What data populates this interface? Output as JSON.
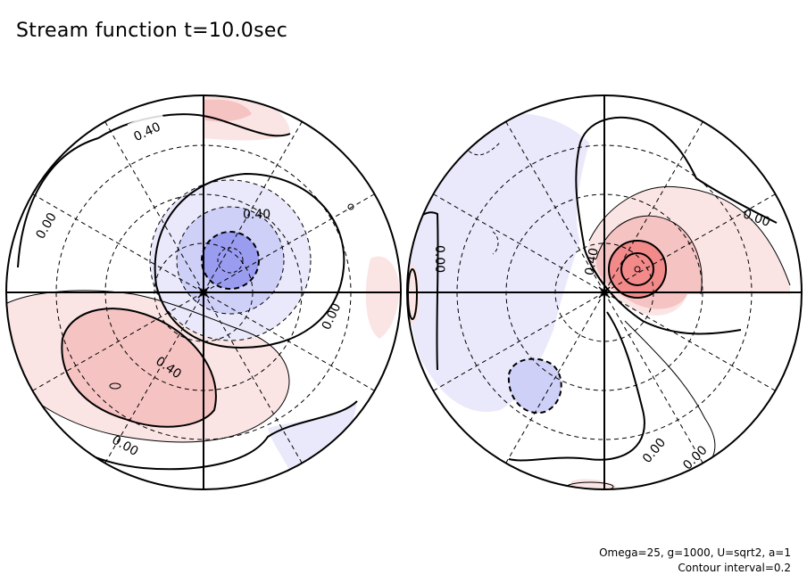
{
  "title": "Stream function t=10.0sec",
  "params_line1": "Omega=25, g=1000, U=sqrt2, a=1",
  "params_line2": "Contour interval=0.2",
  "chart_data": {
    "type": "contour",
    "variable": "Stream function",
    "time": "t=10.0sec",
    "projection": "two polar hemispheres (stereographic), side by side",
    "contour_interval": 0.2,
    "colors": {
      "positive_light": "#fbe4e4",
      "positive_mid": "#f6c3c3",
      "positive_strong": "#f28a8a",
      "negative_light": "#e9e9fb",
      "negative_mid": "#cfd0f7",
      "negative_strong": "#9a9cf0",
      "line": "#000000"
    },
    "contour_labels": [
      {
        "hemisphere": "left",
        "value": "0.40"
      },
      {
        "hemisphere": "left",
        "value": "0.00"
      },
      {
        "hemisphere": "left",
        "value": "0.40"
      },
      {
        "hemisphere": "left",
        "value": "0.00"
      },
      {
        "hemisphere": "left",
        "value": "0.40"
      },
      {
        "hemisphere": "left",
        "value": "0.00"
      },
      {
        "hemisphere": "right",
        "value": "0.00"
      },
      {
        "hemisphere": "right",
        "value": "0.40"
      },
      {
        "hemisphere": "right",
        "value": "0.00"
      },
      {
        "hemisphere": "right",
        "value": "0.00"
      },
      {
        "hemisphere": "right",
        "value": "0.00"
      }
    ],
    "features": [
      {
        "hemisphere": "left",
        "kind": "minimum",
        "sign": "negative"
      },
      {
        "hemisphere": "left",
        "kind": "maximum",
        "sign": "positive"
      },
      {
        "hemisphere": "right",
        "kind": "maximum",
        "sign": "positive"
      },
      {
        "hemisphere": "right",
        "kind": "minimum",
        "sign": "negative"
      }
    ]
  }
}
